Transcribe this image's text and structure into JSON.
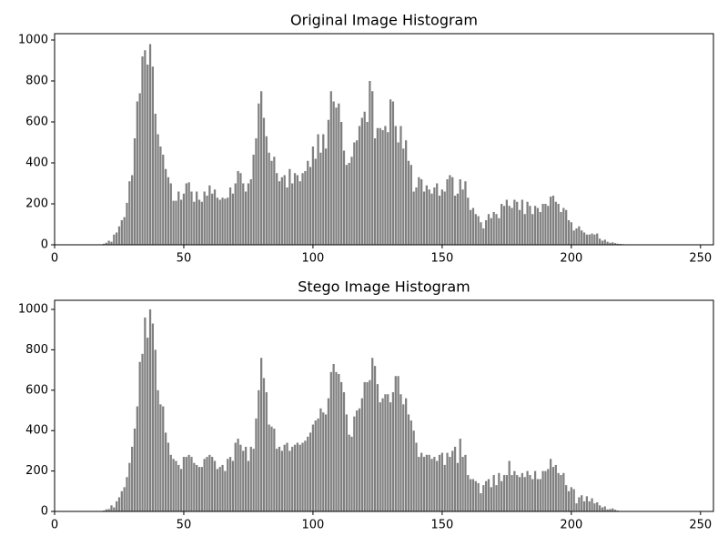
{
  "chart_data": [
    {
      "type": "bar",
      "title": "Original Image Histogram",
      "color": "#808080",
      "xlim": [
        0,
        255
      ],
      "ylim": [
        0,
        1031
      ],
      "xticks": [
        0,
        50,
        100,
        150,
        200,
        250
      ],
      "yticks": [
        0,
        200,
        400,
        600,
        800,
        1000
      ],
      "x": [
        18,
        19,
        20,
        21,
        22,
        23,
        24,
        25,
        26,
        27,
        28,
        29,
        30,
        31,
        32,
        33,
        34,
        35,
        36,
        37,
        38,
        39,
        40,
        41,
        42,
        43,
        44,
        45,
        46,
        47,
        48,
        49,
        50,
        51,
        52,
        53,
        54,
        55,
        56,
        57,
        58,
        59,
        60,
        61,
        62,
        63,
        64,
        65,
        66,
        67,
        68,
        69,
        70,
        71,
        72,
        73,
        74,
        75,
        76,
        77,
        78,
        79,
        80,
        81,
        82,
        83,
        84,
        85,
        86,
        87,
        88,
        89,
        90,
        91,
        92,
        93,
        94,
        95,
        96,
        97,
        98,
        99,
        100,
        101,
        102,
        103,
        104,
        105,
        106,
        107,
        108,
        109,
        110,
        111,
        112,
        113,
        114,
        115,
        116,
        117,
        118,
        119,
        120,
        121,
        122,
        123,
        124,
        125,
        126,
        127,
        128,
        129,
        130,
        131,
        132,
        133,
        134,
        135,
        136,
        137,
        138,
        139,
        140,
        141,
        142,
        143,
        144,
        145,
        146,
        147,
        148,
        149,
        150,
        151,
        152,
        153,
        154,
        155,
        156,
        157,
        158,
        159,
        160,
        161,
        162,
        163,
        164,
        165,
        166,
        167,
        168,
        169,
        170,
        171,
        172,
        173,
        174,
        175,
        176,
        177,
        178,
        179,
        180,
        181,
        182,
        183,
        184,
        185,
        186,
        187,
        188,
        189,
        190,
        191,
        192,
        193,
        194,
        195,
        196,
        197,
        198,
        199,
        200,
        201,
        202,
        203,
        204,
        205,
        206,
        207,
        208,
        209,
        210,
        211,
        212,
        213,
        214,
        215,
        216,
        217,
        218,
        219,
        220,
        221,
        222
      ],
      "values": [
        2,
        5,
        10,
        20,
        15,
        50,
        60,
        90,
        120,
        135,
        205,
        310,
        340,
        520,
        700,
        740,
        920,
        950,
        880,
        980,
        870,
        640,
        540,
        480,
        440,
        370,
        330,
        300,
        215,
        215,
        260,
        220,
        250,
        300,
        305,
        260,
        210,
        260,
        220,
        210,
        260,
        240,
        290,
        250,
        270,
        230,
        220,
        230,
        225,
        230,
        280,
        250,
        300,
        360,
        350,
        300,
        260,
        300,
        320,
        440,
        520,
        690,
        750,
        620,
        530,
        450,
        410,
        430,
        350,
        310,
        330,
        340,
        280,
        370,
        300,
        350,
        340,
        310,
        350,
        360,
        410,
        380,
        480,
        420,
        540,
        450,
        540,
        470,
        610,
        750,
        700,
        670,
        690,
        600,
        460,
        390,
        400,
        430,
        500,
        510,
        580,
        620,
        650,
        600,
        800,
        750,
        520,
        570,
        570,
        560,
        580,
        550,
        710,
        700,
        580,
        500,
        580,
        470,
        510,
        410,
        390,
        260,
        280,
        330,
        320,
        260,
        290,
        270,
        250,
        280,
        300,
        240,
        270,
        260,
        320,
        340,
        330,
        240,
        250,
        320,
        270,
        310,
        230,
        170,
        180,
        150,
        140,
        110,
        80,
        120,
        150,
        130,
        160,
        150,
        130,
        200,
        190,
        220,
        190,
        180,
        220,
        210,
        170,
        220,
        150,
        210,
        190,
        150,
        190,
        180,
        160,
        200,
        200,
        190,
        235,
        240,
        210,
        200,
        160,
        180,
        170,
        120,
        110,
        70,
        80,
        90,
        70,
        60,
        50,
        50,
        55,
        50,
        55,
        30,
        20,
        25,
        15,
        10,
        12,
        8,
        5,
        4,
        3,
        2,
        1
      ]
    },
    {
      "type": "bar",
      "title": "Stego Image Histogram",
      "color": "#808080",
      "xlim": [
        0,
        255
      ],
      "ylim": [
        0,
        1045
      ],
      "xticks": [
        0,
        50,
        100,
        150,
        200,
        250
      ],
      "yticks": [
        0,
        200,
        400,
        600,
        800,
        1000
      ],
      "x": [
        18,
        19,
        20,
        21,
        22,
        23,
        24,
        25,
        26,
        27,
        28,
        29,
        30,
        31,
        32,
        33,
        34,
        35,
        36,
        37,
        38,
        39,
        40,
        41,
        42,
        43,
        44,
        45,
        46,
        47,
        48,
        49,
        50,
        51,
        52,
        53,
        54,
        55,
        56,
        57,
        58,
        59,
        60,
        61,
        62,
        63,
        64,
        65,
        66,
        67,
        68,
        69,
        70,
        71,
        72,
        73,
        74,
        75,
        76,
        77,
        78,
        79,
        80,
        81,
        82,
        83,
        84,
        85,
        86,
        87,
        88,
        89,
        90,
        91,
        92,
        93,
        94,
        95,
        96,
        97,
        98,
        99,
        100,
        101,
        102,
        103,
        104,
        105,
        106,
        107,
        108,
        109,
        110,
        111,
        112,
        113,
        114,
        115,
        116,
        117,
        118,
        119,
        120,
        121,
        122,
        123,
        124,
        125,
        126,
        127,
        128,
        129,
        130,
        131,
        132,
        133,
        134,
        135,
        136,
        137,
        138,
        139,
        140,
        141,
        142,
        143,
        144,
        145,
        146,
        147,
        148,
        149,
        150,
        151,
        152,
        153,
        154,
        155,
        156,
        157,
        158,
        159,
        160,
        161,
        162,
        163,
        164,
        165,
        166,
        167,
        168,
        169,
        170,
        171,
        172,
        173,
        174,
        175,
        176,
        177,
        178,
        179,
        180,
        181,
        182,
        183,
        184,
        185,
        186,
        187,
        188,
        189,
        190,
        191,
        192,
        193,
        194,
        195,
        196,
        197,
        198,
        199,
        200,
        201,
        202,
        203,
        204,
        205,
        206,
        207,
        208,
        209,
        210,
        211,
        212,
        213,
        214,
        215,
        216,
        217,
        218,
        219,
        220,
        221,
        222
      ],
      "values": [
        2,
        4,
        10,
        12,
        30,
        20,
        50,
        70,
        100,
        120,
        170,
        240,
        320,
        410,
        520,
        740,
        780,
        960,
        860,
        1000,
        930,
        800,
        600,
        530,
        520,
        390,
        340,
        280,
        260,
        250,
        230,
        210,
        270,
        270,
        280,
        270,
        240,
        230,
        220,
        220,
        260,
        270,
        280,
        270,
        250,
        210,
        220,
        230,
        200,
        260,
        270,
        250,
        340,
        360,
        330,
        300,
        320,
        250,
        320,
        310,
        460,
        600,
        760,
        660,
        590,
        430,
        420,
        410,
        310,
        320,
        300,
        330,
        340,
        300,
        320,
        330,
        340,
        330,
        340,
        350,
        370,
        390,
        430,
        450,
        460,
        510,
        490,
        480,
        560,
        690,
        730,
        690,
        680,
        640,
        590,
        480,
        380,
        370,
        470,
        500,
        510,
        560,
        640,
        640,
        650,
        760,
        720,
        630,
        540,
        560,
        580,
        580,
        540,
        590,
        670,
        670,
        580,
        530,
        560,
        480,
        450,
        400,
        340,
        270,
        290,
        270,
        280,
        280,
        260,
        270,
        250,
        280,
        290,
        230,
        290,
        270,
        300,
        320,
        240,
        360,
        270,
        280,
        180,
        160,
        160,
        150,
        140,
        90,
        130,
        150,
        160,
        120,
        180,
        130,
        190,
        150,
        180,
        180,
        250,
        180,
        200,
        180,
        170,
        190,
        170,
        200,
        180,
        160,
        200,
        160,
        160,
        200,
        200,
        210,
        260,
        220,
        230,
        190,
        180,
        190,
        130,
        100,
        120,
        110,
        40,
        70,
        80,
        50,
        75,
        50,
        65,
        40,
        45,
        30,
        20,
        25,
        10,
        12,
        15,
        8,
        4,
        2,
        1,
        1,
        0
      ]
    }
  ]
}
